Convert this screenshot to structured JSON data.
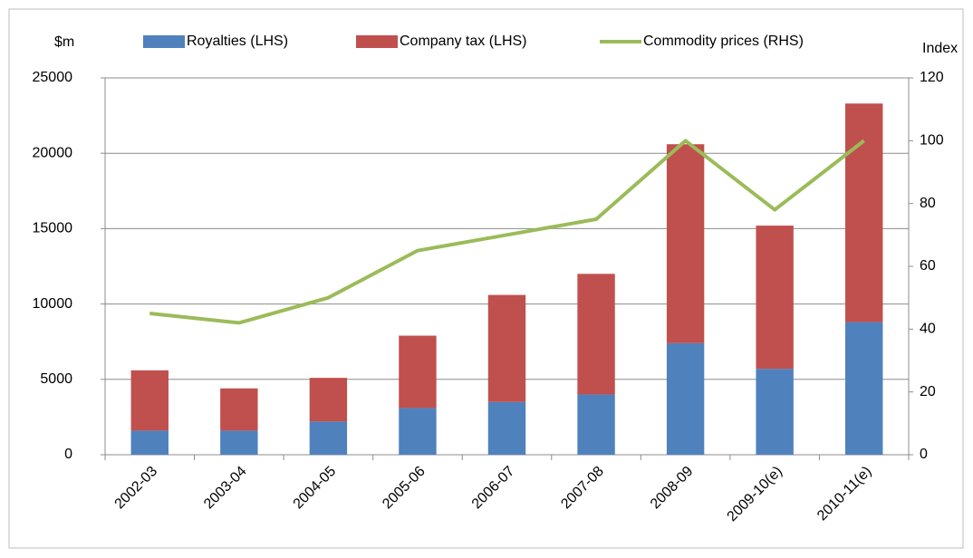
{
  "chart_data": {
    "type": "bar-line",
    "y_label": "$m",
    "y2_label": "Index",
    "categories": [
      "2002-03",
      "2003-04",
      "2004-05",
      "2005-06",
      "2006-07",
      "2007-08",
      "2008-09",
      "2009-10(e)",
      "2010-11(e)"
    ],
    "series": [
      {
        "name": "Royalties (LHS)",
        "color": "#4f81bd",
        "kind": "bar",
        "values": [
          1600,
          1600,
          2200,
          3100,
          3500,
          4000,
          7400,
          5700,
          8800
        ]
      },
      {
        "name": "Company tax (LHS)",
        "color": "#c0504d",
        "kind": "bar",
        "values": [
          4000,
          2800,
          2900,
          4800,
          7100,
          8000,
          13200,
          9500,
          14500
        ]
      },
      {
        "name": "Commodity prices (RHS)",
        "color": "#9bbb59",
        "kind": "line",
        "axis": "y2",
        "values": [
          45,
          42,
          50,
          65,
          70,
          75,
          100,
          78,
          100
        ]
      }
    ],
    "stacked": true,
    "ylim": [
      0,
      25000
    ],
    "yticks": [
      0,
      5000,
      10000,
      15000,
      20000,
      25000
    ],
    "y2lim": [
      0,
      120
    ],
    "y2ticks": [
      0,
      20,
      40,
      60,
      80,
      100,
      120
    ],
    "grid": true
  }
}
